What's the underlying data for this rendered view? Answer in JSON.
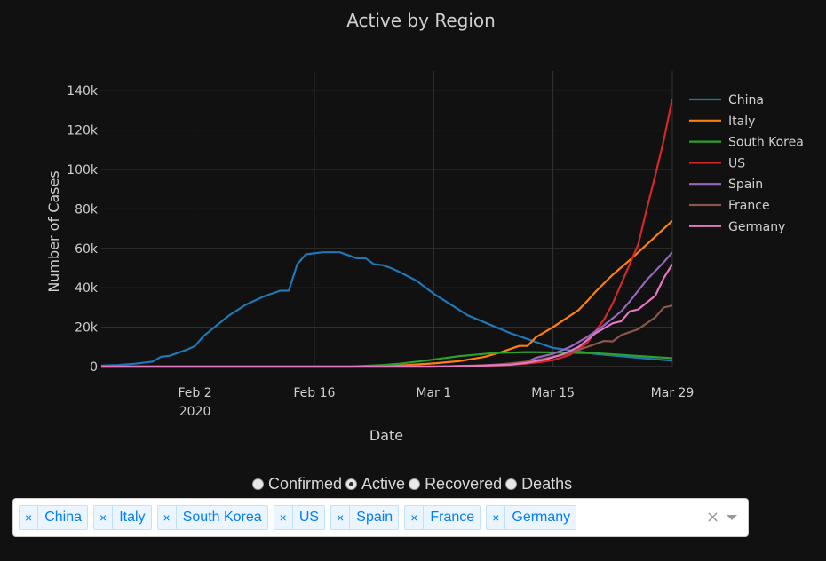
{
  "chart_data": {
    "type": "line",
    "title": "Active by Region",
    "xlabel": "Date",
    "ylabel": "Number of Cases",
    "x_range": [
      "2020-01-22",
      "2020-03-29"
    ],
    "ylim": [
      0,
      150000
    ],
    "x_ticks": [
      {
        "date": "2020-02-02",
        "label": "Feb 2",
        "sub": "2020"
      },
      {
        "date": "2020-02-16",
        "label": "Feb 16",
        "sub": ""
      },
      {
        "date": "2020-03-01",
        "label": "Mar 1",
        "sub": ""
      },
      {
        "date": "2020-03-15",
        "label": "Mar 15",
        "sub": ""
      },
      {
        "date": "2020-03-29",
        "label": "Mar 29",
        "sub": ""
      }
    ],
    "y_ticks": [
      {
        "value": 0,
        "label": "0"
      },
      {
        "value": 20000,
        "label": "20k"
      },
      {
        "value": 40000,
        "label": "40k"
      },
      {
        "value": 60000,
        "label": "60k"
      },
      {
        "value": 80000,
        "label": "80k"
      },
      {
        "value": 100000,
        "label": "100k"
      },
      {
        "value": 120000,
        "label": "120k"
      },
      {
        "value": 140000,
        "label": "140k"
      }
    ],
    "grid": true,
    "legend_position": "right",
    "series": [
      {
        "name": "China",
        "color": "#1f77b4",
        "points": [
          [
            "2020-01-22",
            500
          ],
          [
            "2020-01-24",
            800
          ],
          [
            "2020-01-26",
            1500
          ],
          [
            "2020-01-28",
            2500
          ],
          [
            "2020-01-29",
            5000
          ],
          [
            "2020-01-30",
            5500
          ],
          [
            "2020-02-01",
            8500
          ],
          [
            "2020-02-02",
            10500
          ],
          [
            "2020-02-03",
            15500
          ],
          [
            "2020-02-04",
            19000
          ],
          [
            "2020-02-06",
            26000
          ],
          [
            "2020-02-08",
            31500
          ],
          [
            "2020-02-10",
            35500
          ],
          [
            "2020-02-12",
            38500
          ],
          [
            "2020-02-13",
            38500
          ],
          [
            "2020-02-14",
            52000
          ],
          [
            "2020-02-15",
            57000
          ],
          [
            "2020-02-17",
            58000
          ],
          [
            "2020-02-19",
            58000
          ],
          [
            "2020-02-21",
            55000
          ],
          [
            "2020-02-22",
            55000
          ],
          [
            "2020-02-23",
            52000
          ],
          [
            "2020-02-24",
            51500
          ],
          [
            "2020-02-25",
            50000
          ],
          [
            "2020-02-26",
            48000
          ],
          [
            "2020-02-28",
            43500
          ],
          [
            "2020-03-01",
            37000
          ],
          [
            "2020-03-05",
            26000
          ],
          [
            "2020-03-10",
            17000
          ],
          [
            "2020-03-15",
            9500
          ],
          [
            "2020-03-20",
            6500
          ],
          [
            "2020-03-25",
            4500
          ],
          [
            "2020-03-29",
            3000
          ]
        ]
      },
      {
        "name": "Italy",
        "color": "#ff7f0e",
        "points": [
          [
            "2020-01-22",
            0
          ],
          [
            "2020-02-20",
            0
          ],
          [
            "2020-02-25",
            300
          ],
          [
            "2020-03-01",
            1600
          ],
          [
            "2020-03-04",
            2800
          ],
          [
            "2020-03-07",
            5000
          ],
          [
            "2020-03-09",
            7500
          ],
          [
            "2020-03-11",
            10500
          ],
          [
            "2020-03-12",
            10500
          ],
          [
            "2020-03-13",
            14900
          ],
          [
            "2020-03-15",
            20000
          ],
          [
            "2020-03-18",
            28700
          ],
          [
            "2020-03-19",
            33200
          ],
          [
            "2020-03-20",
            38000
          ],
          [
            "2020-03-22",
            46600
          ],
          [
            "2020-03-24",
            54000
          ],
          [
            "2020-03-26",
            62000
          ],
          [
            "2020-03-29",
            74000
          ]
        ]
      },
      {
        "name": "South Korea",
        "color": "#2ca02c",
        "points": [
          [
            "2020-01-22",
            0
          ],
          [
            "2020-02-20",
            0
          ],
          [
            "2020-02-24",
            800
          ],
          [
            "2020-02-26",
            1500
          ],
          [
            "2020-02-29",
            3000
          ],
          [
            "2020-03-02",
            4200
          ],
          [
            "2020-03-04",
            5300
          ],
          [
            "2020-03-08",
            6900
          ],
          [
            "2020-03-12",
            7400
          ],
          [
            "2020-03-15",
            7200
          ],
          [
            "2020-03-20",
            6800
          ],
          [
            "2020-03-24",
            5700
          ],
          [
            "2020-03-29",
            4300
          ]
        ]
      },
      {
        "name": "US",
        "color": "#d62728",
        "points": [
          [
            "2020-01-22",
            0
          ],
          [
            "2020-03-01",
            0
          ],
          [
            "2020-03-06",
            300
          ],
          [
            "2020-03-10",
            900
          ],
          [
            "2020-03-13",
            2000
          ],
          [
            "2020-03-15",
            3300
          ],
          [
            "2020-03-17",
            6000
          ],
          [
            "2020-03-19",
            12000
          ],
          [
            "2020-03-21",
            24000
          ],
          [
            "2020-03-22",
            32000
          ],
          [
            "2020-03-23",
            42000
          ],
          [
            "2020-03-24",
            52000
          ],
          [
            "2020-03-25",
            62000
          ],
          [
            "2020-03-26",
            80000
          ],
          [
            "2020-03-27",
            97000
          ],
          [
            "2020-03-28",
            115000
          ],
          [
            "2020-03-29",
            136000
          ]
        ]
      },
      {
        "name": "Spain",
        "color": "#9467bd",
        "points": [
          [
            "2020-01-22",
            0
          ],
          [
            "2020-03-01",
            0
          ],
          [
            "2020-03-06",
            400
          ],
          [
            "2020-03-10",
            1500
          ],
          [
            "2020-03-12",
            2500
          ],
          [
            "2020-03-13",
            4500
          ],
          [
            "2020-03-15",
            6500
          ],
          [
            "2020-03-17",
            10000
          ],
          [
            "2020-03-19",
            15000
          ],
          [
            "2020-03-21",
            21000
          ],
          [
            "2020-03-23",
            28000
          ],
          [
            "2020-03-24",
            33000
          ],
          [
            "2020-03-26",
            44000
          ],
          [
            "2020-03-28",
            53000
          ],
          [
            "2020-03-29",
            58000
          ]
        ]
      },
      {
        "name": "France",
        "color": "#8c564b",
        "points": [
          [
            "2020-01-22",
            0
          ],
          [
            "2020-03-01",
            0
          ],
          [
            "2020-03-08",
            800
          ],
          [
            "2020-03-12",
            2500
          ],
          [
            "2020-03-14",
            4000
          ],
          [
            "2020-03-17",
            7000
          ],
          [
            "2020-03-19",
            10000
          ],
          [
            "2020-03-21",
            13000
          ],
          [
            "2020-03-22",
            12800
          ],
          [
            "2020-03-23",
            16000
          ],
          [
            "2020-03-25",
            19000
          ],
          [
            "2020-03-27",
            25000
          ],
          [
            "2020-03-28",
            30000
          ],
          [
            "2020-03-29",
            31000
          ]
        ]
      },
      {
        "name": "Germany",
        "color": "#e377c2",
        "points": [
          [
            "2020-01-22",
            0
          ],
          [
            "2020-03-01",
            0
          ],
          [
            "2020-03-06",
            400
          ],
          [
            "2020-03-10",
            1000
          ],
          [
            "2020-03-12",
            2000
          ],
          [
            "2020-03-14",
            3500
          ],
          [
            "2020-03-16",
            6000
          ],
          [
            "2020-03-18",
            10000
          ],
          [
            "2020-03-20",
            17000
          ],
          [
            "2020-03-22",
            22000
          ],
          [
            "2020-03-23",
            23000
          ],
          [
            "2020-03-24",
            28000
          ],
          [
            "2020-03-25",
            29000
          ],
          [
            "2020-03-27",
            36000
          ],
          [
            "2020-03-28",
            45000
          ],
          [
            "2020-03-29",
            52000
          ]
        ]
      }
    ]
  },
  "controls": {
    "radio_options": [
      "Confirmed",
      "Active",
      "Recovered",
      "Deaths"
    ],
    "radio_selected": "Active",
    "selected_regions": [
      "China",
      "Italy",
      "South Korea",
      "US",
      "Spain",
      "France",
      "Germany"
    ],
    "remove_glyph": "×",
    "clear_glyph": "×"
  }
}
